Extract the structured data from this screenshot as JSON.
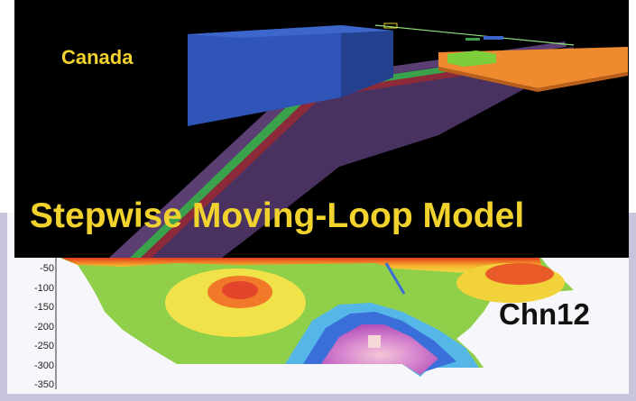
{
  "labels": {
    "region": "Canada",
    "title": "Stepwise Moving-Loop Model",
    "channel": "Chn12"
  },
  "section_axis": {
    "ticks": [
      "-50",
      "-100",
      "-150",
      "-200",
      "-250",
      "-300",
      "-350"
    ]
  },
  "colors": {
    "title_text": "#f2d22c",
    "model_background": "#000000",
    "frame": "#c8c4dc",
    "plate_blue": "#2f55b8",
    "plate_orange": "#f08a2e",
    "layer_green": "#3aa24a",
    "layer_red": "#8c2a3a",
    "layer_purple": "#5b3f73"
  }
}
